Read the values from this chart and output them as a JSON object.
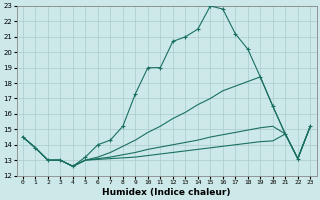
{
  "xlabel": "Humidex (Indice chaleur)",
  "bg_color": "#cce8e8",
  "grid_color": "#aacccc",
  "line_color": "#1a7060",
  "xlim_min": -0.5,
  "xlim_max": 23.5,
  "ylim_min": 12,
  "ylim_max": 23,
  "xticks": [
    0,
    1,
    2,
    3,
    4,
    5,
    6,
    7,
    8,
    9,
    10,
    11,
    12,
    13,
    14,
    15,
    16,
    17,
    18,
    19,
    20,
    21,
    22,
    23
  ],
  "yticks": [
    12,
    13,
    14,
    15,
    16,
    17,
    18,
    19,
    20,
    21,
    22,
    23
  ],
  "main_x": [
    0,
    1,
    2,
    3,
    4,
    5,
    6,
    7,
    8,
    9,
    10,
    11,
    12,
    13,
    14,
    15,
    16,
    17,
    18,
    19,
    20,
    21,
    22,
    23
  ],
  "main_y": [
    14.5,
    13.8,
    13.0,
    13.0,
    12.6,
    13.2,
    14.0,
    14.3,
    15.2,
    17.3,
    19.0,
    19.0,
    20.7,
    21.0,
    21.5,
    23.0,
    22.8,
    21.2,
    20.2,
    18.4,
    16.5,
    14.7,
    13.1,
    15.2
  ],
  "line2_x": [
    0,
    1,
    2,
    3,
    4,
    5,
    6,
    7,
    8,
    9,
    10,
    11,
    12,
    13,
    14,
    15,
    16,
    17,
    18,
    19,
    20,
    21,
    22,
    23
  ],
  "line2_y": [
    14.5,
    13.8,
    13.0,
    13.0,
    12.6,
    13.0,
    13.2,
    13.5,
    13.9,
    14.3,
    14.8,
    15.2,
    15.7,
    16.1,
    16.6,
    17.0,
    17.5,
    17.8,
    18.1,
    18.4,
    16.5,
    14.7,
    13.1,
    15.2
  ],
  "line3_x": [
    0,
    1,
    2,
    3,
    4,
    5,
    6,
    7,
    8,
    9,
    10,
    11,
    12,
    13,
    14,
    15,
    16,
    17,
    18,
    19,
    20,
    21,
    22,
    23
  ],
  "line3_y": [
    14.5,
    13.8,
    13.0,
    13.0,
    12.6,
    13.0,
    13.1,
    13.2,
    13.35,
    13.5,
    13.7,
    13.85,
    14.0,
    14.15,
    14.3,
    14.5,
    14.65,
    14.8,
    14.95,
    15.1,
    15.2,
    14.7,
    13.1,
    15.2
  ],
  "line4_x": [
    0,
    1,
    2,
    3,
    4,
    5,
    6,
    7,
    8,
    9,
    10,
    11,
    12,
    13,
    14,
    15,
    16,
    17,
    18,
    19,
    20,
    21,
    22,
    23
  ],
  "line4_y": [
    14.5,
    13.8,
    13.0,
    13.0,
    12.6,
    13.0,
    13.05,
    13.1,
    13.15,
    13.2,
    13.3,
    13.4,
    13.5,
    13.6,
    13.7,
    13.8,
    13.9,
    14.0,
    14.1,
    14.2,
    14.25,
    14.7,
    13.1,
    15.2
  ]
}
